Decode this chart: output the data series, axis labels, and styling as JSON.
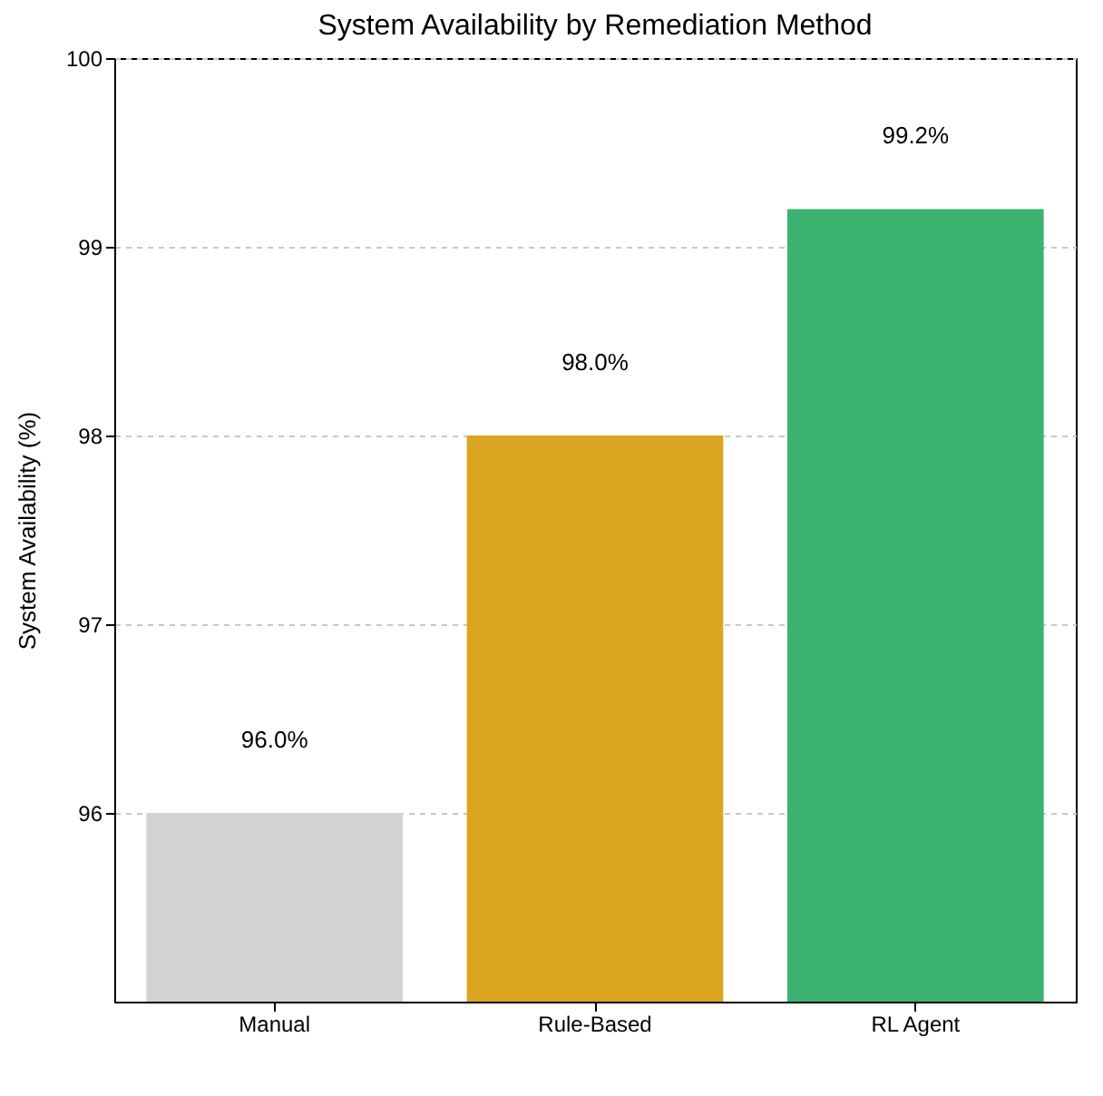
{
  "chart_data": {
    "type": "bar",
    "title": "System Availability by Remediation Method",
    "ylabel": "System Availability (%)",
    "categories": [
      "Manual",
      "Rule-Based",
      "RL Agent"
    ],
    "values": [
      96.0,
      98.0,
      99.2
    ],
    "colors": [
      "#d3d3d3",
      "#daa520",
      "#3cb371"
    ],
    "value_labels": [
      "96.0%",
      "98.0%",
      "99.2%"
    ],
    "ylim": [
      95,
      100
    ],
    "yticks": [
      96,
      97,
      98,
      99,
      100
    ],
    "grid": "y"
  }
}
